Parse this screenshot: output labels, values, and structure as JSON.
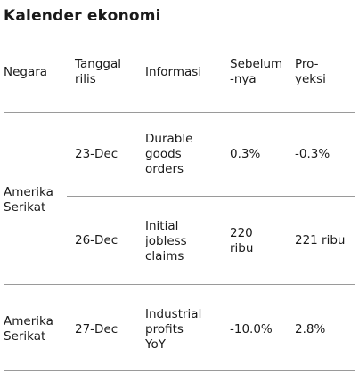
{
  "title": "Kalender ekonomi",
  "headers": {
    "country": "Negara",
    "release_date": [
      "Tanggal",
      "rilis"
    ],
    "info": "Informasi",
    "previous": [
      "Sebelum",
      "-nya"
    ],
    "projection": [
      "Pro-",
      "yeksi"
    ]
  },
  "groups": [
    {
      "country": [
        "Amerika",
        "Serikat"
      ],
      "rows": [
        {
          "date": "23-Dec",
          "info": [
            "Durable",
            "goods",
            "orders"
          ],
          "previous": [
            "0.3%"
          ],
          "projection": "-0.3%"
        },
        {
          "date": "26-Dec",
          "info": [
            "Initial",
            "jobless",
            "claims"
          ],
          "previous": [
            "220",
            "ribu"
          ],
          "projection": "221 ribu"
        }
      ]
    },
    {
      "country": [
        "Amerika",
        "Serikat"
      ],
      "rows": [
        {
          "date": "27-Dec",
          "info": [
            "Industrial",
            "profits",
            "YoY"
          ],
          "previous": [
            "-10.0%"
          ],
          "projection": "2.8%"
        }
      ]
    }
  ]
}
